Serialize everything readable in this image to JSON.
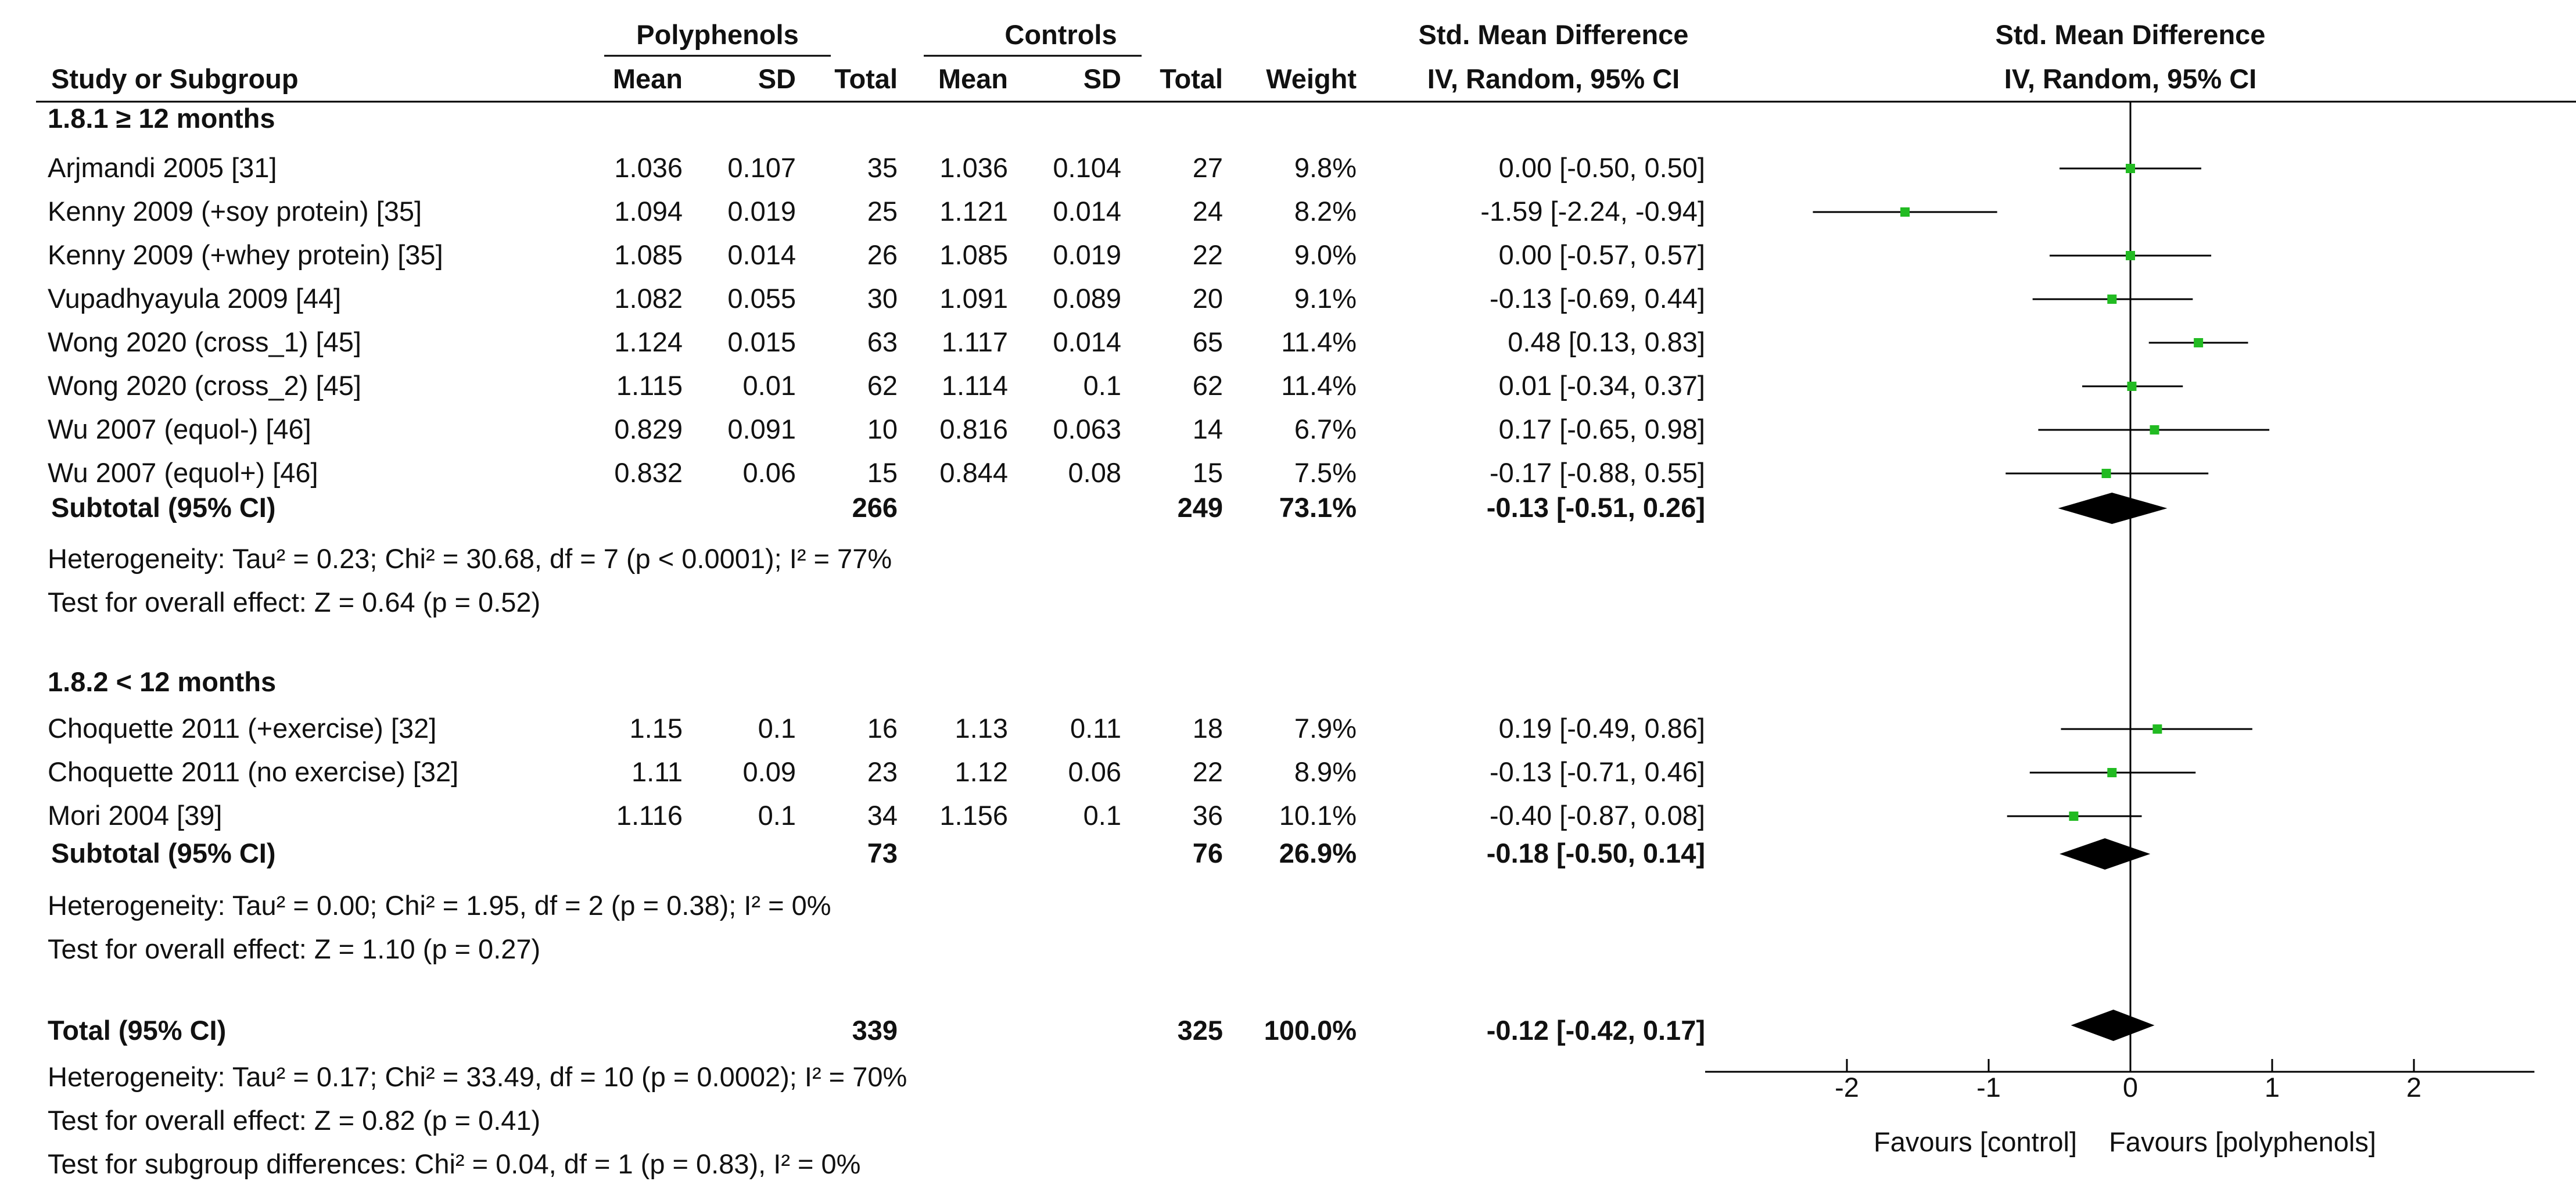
{
  "header": {
    "group_intervention": "Polyphenols",
    "group_control": "Controls",
    "smd_table": "Std. Mean Difference",
    "smd_plot": "Std. Mean Difference",
    "col_study": "Study or Subgroup",
    "col_mean": "Mean",
    "col_sd": "SD",
    "col_total": "Total",
    "col_weight": "Weight",
    "col_method_table": "IV, Random, 95% CI",
    "col_method_plot": "IV, Random, 95% CI"
  },
  "subgroups": [
    {
      "title": "1.8.1 ≥ 12 months",
      "studies": [
        {
          "name": "Arjmandi 2005 [31]",
          "e_mean": "1.036",
          "e_sd": "0.107",
          "e_n": "35",
          "c_mean": "1.036",
          "c_sd": "0.104",
          "c_n": "27",
          "weight": "9.8%",
          "ci_text": "0.00 [-0.50, 0.50]",
          "est": 0.0,
          "lo": -0.5,
          "hi": 0.5
        },
        {
          "name": "Kenny 2009 (+soy protein) [35]",
          "e_mean": "1.094",
          "e_sd": "0.019",
          "e_n": "25",
          "c_mean": "1.121",
          "c_sd": "0.014",
          "c_n": "24",
          "weight": "8.2%",
          "ci_text": "-1.59 [-2.24, -0.94]",
          "est": -1.59,
          "lo": -2.24,
          "hi": -0.94
        },
        {
          "name": "Kenny 2009 (+whey protein)  [35]",
          "e_mean": "1.085",
          "e_sd": "0.014",
          "e_n": "26",
          "c_mean": "1.085",
          "c_sd": "0.019",
          "c_n": "22",
          "weight": "9.0%",
          "ci_text": "0.00 [-0.57, 0.57]",
          "est": 0.0,
          "lo": -0.57,
          "hi": 0.57
        },
        {
          "name": "Vupadhyayula 2009 [44]",
          "e_mean": "1.082",
          "e_sd": "0.055",
          "e_n": "30",
          "c_mean": "1.091",
          "c_sd": "0.089",
          "c_n": "20",
          "weight": "9.1%",
          "ci_text": "-0.13 [-0.69, 0.44]",
          "est": -0.13,
          "lo": -0.69,
          "hi": 0.44
        },
        {
          "name": "Wong 2020 (cross_1) [45]",
          "e_mean": "1.124",
          "e_sd": "0.015",
          "e_n": "63",
          "c_mean": "1.117",
          "c_sd": "0.014",
          "c_n": "65",
          "weight": "11.4%",
          "ci_text": "0.48 [0.13, 0.83]",
          "est": 0.48,
          "lo": 0.13,
          "hi": 0.83
        },
        {
          "name": "Wong 2020 (cross_2) [45]",
          "e_mean": "1.115",
          "e_sd": "0.01",
          "e_n": "62",
          "c_mean": "1.114",
          "c_sd": "0.1",
          "c_n": "62",
          "weight": "11.4%",
          "ci_text": "0.01 [-0.34, 0.37]",
          "est": 0.01,
          "lo": -0.34,
          "hi": 0.37
        },
        {
          "name": "Wu 2007 (equol-) [46]",
          "e_mean": "0.829",
          "e_sd": "0.091",
          "e_n": "10",
          "c_mean": "0.816",
          "c_sd": "0.063",
          "c_n": "14",
          "weight": "6.7%",
          "ci_text": "0.17 [-0.65, 0.98]",
          "est": 0.17,
          "lo": -0.65,
          "hi": 0.98
        },
        {
          "name": "Wu 2007 (equol+) [46]",
          "e_mean": "0.832",
          "e_sd": "0.06",
          "e_n": "15",
          "c_mean": "0.844",
          "c_sd": "0.08",
          "c_n": "15",
          "weight": "7.5%",
          "ci_text": "-0.17 [-0.88, 0.55]",
          "est": -0.17,
          "lo": -0.88,
          "hi": 0.55
        }
      ],
      "subtotal": {
        "label": "Subtotal (95% CI)",
        "e_n": "266",
        "c_n": "249",
        "weight": "73.1%",
        "ci_text": "-0.13 [-0.51, 0.26]",
        "est": -0.13,
        "lo": -0.51,
        "hi": 0.26
      },
      "heterogeneity": "Heterogeneity: Tau² = 0.23; Chi² = 30.68, df = 7 (p < 0.0001); I² = 77%",
      "overall": "Test for overall effect: Z = 0.64 (p = 0.52)"
    },
    {
      "title": "1.8.2 < 12 months",
      "studies": [
        {
          "name": "Choquette 2011 (+exercise) [32]",
          "e_mean": "1.15",
          "e_sd": "0.1",
          "e_n": "16",
          "c_mean": "1.13",
          "c_sd": "0.11",
          "c_n": "18",
          "weight": "7.9%",
          "ci_text": "0.19 [-0.49, 0.86]",
          "est": 0.19,
          "lo": -0.49,
          "hi": 0.86
        },
        {
          "name": "Choquette 2011 (no exercise) [32]",
          "e_mean": "1.11",
          "e_sd": "0.09",
          "e_n": "23",
          "c_mean": "1.12",
          "c_sd": "0.06",
          "c_n": "22",
          "weight": "8.9%",
          "ci_text": "-0.13 [-0.71, 0.46]",
          "est": -0.13,
          "lo": -0.71,
          "hi": 0.46
        },
        {
          "name": "Mori 2004 [39]",
          "e_mean": "1.116",
          "e_sd": "0.1",
          "e_n": "34",
          "c_mean": "1.156",
          "c_sd": "0.1",
          "c_n": "36",
          "weight": "10.1%",
          "ci_text": "-0.40 [-0.87, 0.08]",
          "est": -0.4,
          "lo": -0.87,
          "hi": 0.08
        }
      ],
      "subtotal": {
        "label": "Subtotal (95% CI)",
        "e_n": "73",
        "c_n": "76",
        "weight": "26.9%",
        "ci_text": "-0.18 [-0.50, 0.14]",
        "est": -0.18,
        "lo": -0.5,
        "hi": 0.14
      },
      "heterogeneity": "Heterogeneity: Tau² = 0.00; Chi² = 1.95, df = 2 (p = 0.38); I² = 0%",
      "overall": "Test for overall effect: Z = 1.10 (p = 0.27)"
    }
  ],
  "total": {
    "label": "Total (95% CI)",
    "e_n": "339",
    "c_n": "325",
    "weight": "100.0%",
    "ci_text": "-0.12 [-0.42, 0.17]",
    "est": -0.12,
    "lo": -0.42,
    "hi": 0.17
  },
  "footer": {
    "heterogeneity": "Heterogeneity: Tau² = 0.17; Chi² = 33.49, df = 10 (p = 0.0002); I² = 70%",
    "overall": "Test for overall effect: Z = 0.82 (p = 0.41)",
    "subgroup_diff": "Test for subgroup differences: Chi² = 0.04, df = 1 (p = 0.83), I² = 0%"
  },
  "axis": {
    "ticks": [
      -2,
      -1,
      0,
      1,
      2
    ],
    "tick_labels": [
      "-2",
      "-1",
      "0",
      "1",
      "2"
    ],
    "label_left": "Favours [control]",
    "label_right": "Favours [polyphenols]"
  },
  "colors": {
    "square": "#22bb22",
    "line": "#000000",
    "diamond": "#000000",
    "text": "#111111"
  },
  "chart_data": {
    "type": "scatter",
    "title": "Std. Mean Difference, IV, Random, 95% CI",
    "xlabel": "Favours [control] / Favours [polyphenols]",
    "ylabel": "",
    "xlim": [
      -3.0,
      2.85
    ],
    "xticks": [
      -2,
      -1,
      0,
      1,
      2
    ],
    "categories": [
      "Arjmandi 2005 [31]",
      "Kenny 2009 (+soy protein) [35]",
      "Kenny 2009 (+whey protein)  [35]",
      "Vupadhyayula 2009 [44]",
      "Wong 2020 (cross_1) [45]",
      "Wong 2020 (cross_2) [45]",
      "Wu 2007 (equol-) [46]",
      "Wu 2007 (equol+) [46]",
      "Subtotal (95% CI)",
      "Choquette 2011 (+exercise) [32]",
      "Choquette 2011 (no exercise) [32]",
      "Mori 2004 [39]",
      "Subtotal (95% CI)",
      "Total (95% CI)"
    ],
    "series": [
      {
        "name": "Std. Mean Difference",
        "values": [
          0.0,
          -1.59,
          0.0,
          -0.13,
          0.48,
          0.01,
          0.17,
          -0.17,
          -0.13,
          0.19,
          -0.13,
          -0.4,
          -0.18,
          -0.12
        ]
      },
      {
        "name": "Lower 95% CI",
        "values": [
          -0.5,
          -2.24,
          -0.57,
          -0.69,
          0.13,
          -0.34,
          -0.65,
          -0.88,
          -0.51,
          -0.49,
          -0.71,
          -0.87,
          -0.5,
          -0.42
        ]
      },
      {
        "name": "Upper 95% CI",
        "values": [
          0.5,
          -0.94,
          0.57,
          0.44,
          0.83,
          0.37,
          0.98,
          0.55,
          0.26,
          0.86,
          0.46,
          0.08,
          0.14,
          0.17
        ]
      }
    ],
    "grid": false,
    "legend": "none"
  }
}
